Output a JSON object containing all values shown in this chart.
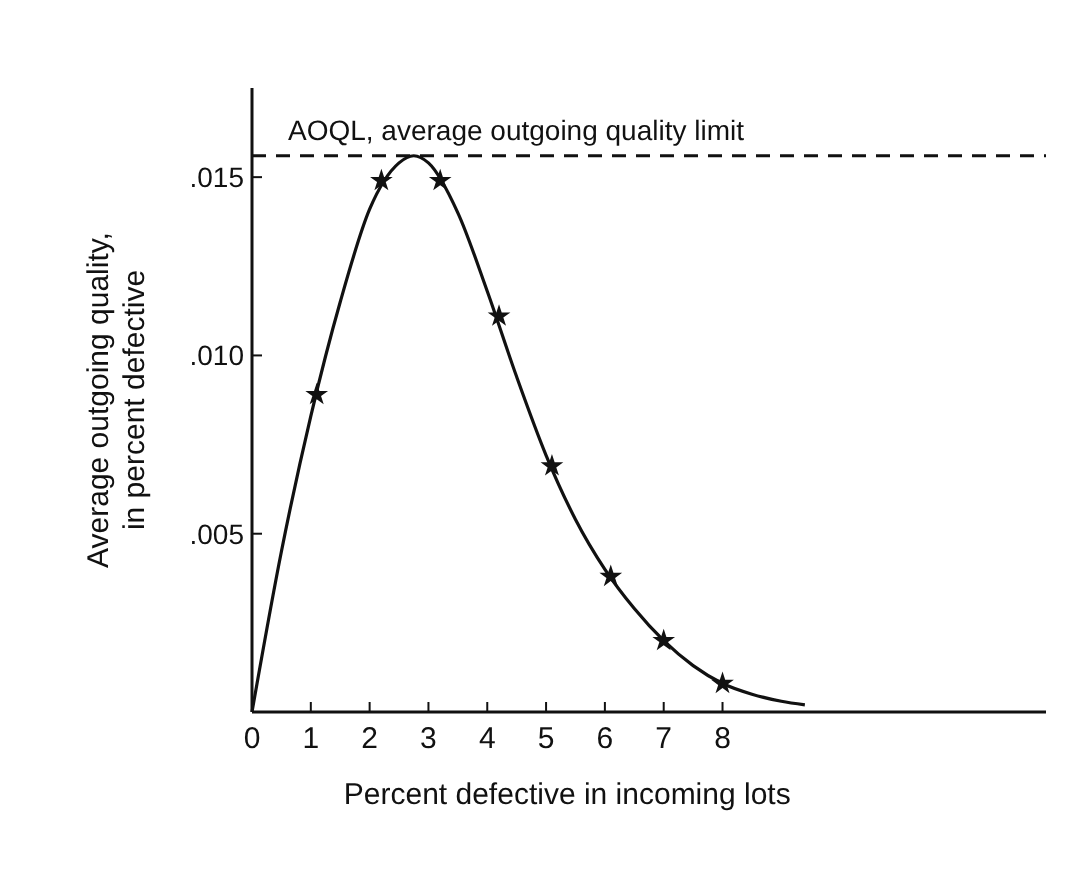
{
  "chart_data": {
    "type": "line",
    "xlabel": "Percent defective in incoming lots",
    "ylabel": "Average outgoing quality,\nin percent defective",
    "xlim": [
      0,
      13.5
    ],
    "ylim": [
      0,
      0.0175
    ],
    "xticks": [
      0,
      1,
      2,
      3,
      4,
      5,
      6,
      7,
      8
    ],
    "yticks": [
      {
        "value": 0.005,
        "label": ".005"
      },
      {
        "value": 0.01,
        "label": ".010"
      },
      {
        "value": 0.015,
        "label": ".015"
      }
    ],
    "grid": false,
    "series": [
      {
        "color": "#111111",
        "marker": "none",
        "line_style": "solid",
        "x": [
          0,
          0.5,
          1,
          1.5,
          2,
          2.5,
          2.75,
          3,
          3.5,
          4,
          4.5,
          5,
          5.5,
          6,
          6.5,
          7,
          7.5,
          8,
          8.5,
          9,
          9.4
        ],
        "values": [
          0,
          0.0045,
          0.0083,
          0.0115,
          0.0141,
          0.0154,
          0.0156,
          0.0154,
          0.014,
          0.0118,
          0.0094,
          0.0072,
          0.0054,
          0.004,
          0.0029,
          0.002,
          0.0013,
          0.0008,
          0.0005,
          0.0003,
          0.0002
        ]
      },
      {
        "type": "scatter",
        "color": "#111111",
        "marker": "star",
        "x": [
          1.1,
          2.2,
          3.2,
          4.2,
          5.1,
          6.1,
          7,
          8
        ],
        "values": [
          0.0089,
          0.0149,
          0.0149,
          0.0111,
          0.0069,
          0.0038,
          0.002,
          0.0008
        ]
      }
    ],
    "ref_lines": [
      {
        "axis": "y",
        "value": 0.0156,
        "label": "AOQL, average outgoing quality limit",
        "line_style": "dashed",
        "color": "#111111"
      }
    ]
  }
}
